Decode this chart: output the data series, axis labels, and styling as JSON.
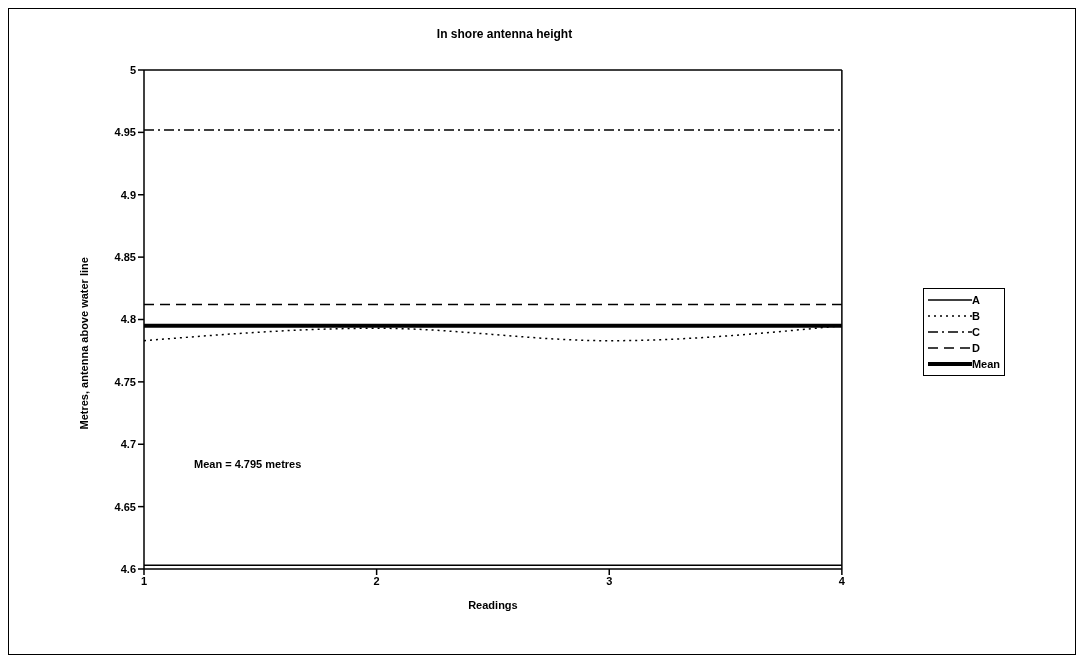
{
  "chart_data": {
    "type": "line",
    "title": "In shore antenna height",
    "xlabel": "Readings",
    "ylabel": "Metres, antenna above water line",
    "x": [
      1,
      2,
      3,
      4
    ],
    "xlim": [
      1,
      4
    ],
    "xticks": [
      1,
      2,
      3,
      4
    ],
    "ylim": [
      4.6,
      5
    ],
    "yticks": [
      4.6,
      4.65,
      4.7,
      4.75,
      4.8,
      4.85,
      4.9,
      4.95,
      5
    ],
    "grid": false,
    "legend": "right",
    "marker": "none",
    "series": [
      {
        "name": "A",
        "color": "#000000",
        "values": [
          4.603,
          4.603,
          4.603,
          4.603
        ],
        "line_style": "solid"
      },
      {
        "name": "B",
        "color": "#000000",
        "values": [
          4.783,
          4.793,
          4.783,
          4.795
        ],
        "line_style": "dotted"
      },
      {
        "name": "C",
        "color": "#000000",
        "values": [
          4.952,
          4.952,
          4.952,
          4.952
        ],
        "line_style": "dashdot"
      },
      {
        "name": "D",
        "color": "#000000",
        "values": [
          4.812,
          4.812,
          4.812,
          4.812
        ],
        "line_style": "dashed"
      },
      {
        "name": "Mean",
        "color": "#000000",
        "values": [
          4.795,
          4.795,
          4.795,
          4.795
        ],
        "line_style": "solid"
      }
    ],
    "annotations": [
      "Mean = 4.795 metres"
    ]
  }
}
